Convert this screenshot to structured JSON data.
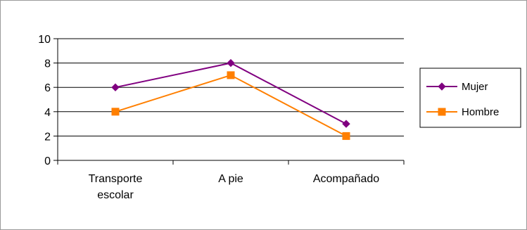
{
  "chart_data": {
    "type": "line",
    "categories": [
      [
        "Transporte",
        "escolar"
      ],
      [
        "A pie"
      ],
      [
        "Acompañado"
      ]
    ],
    "ylim": [
      0,
      10
    ],
    "yticks": [
      0,
      2,
      4,
      6,
      8,
      10
    ],
    "grid": true,
    "legend_position": "right",
    "series": [
      {
        "name": "Mujer",
        "values": [
          6,
          8,
          3
        ],
        "color": "#800080",
        "marker": "diamond"
      },
      {
        "name": "Hombre",
        "values": [
          4,
          7,
          2
        ],
        "color": "#ff7f00",
        "marker": "square"
      }
    ]
  }
}
